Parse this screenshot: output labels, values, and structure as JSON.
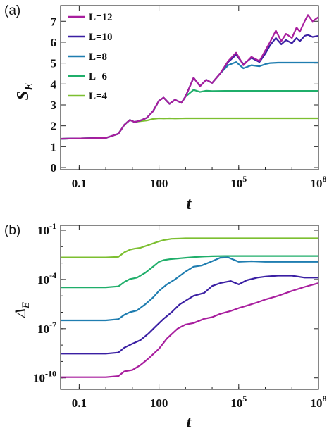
{
  "colors": {
    "L12": "#a81e9e",
    "L10": "#3a1fa3",
    "L8": "#1f7db0",
    "L6": "#1fae6a",
    "L4": "#7cbf30"
  },
  "chart_data": [
    {
      "type": "line",
      "panel_label": "(a)",
      "xscale": "log",
      "yscale": "linear",
      "xlabel": "t",
      "ylabel": "S",
      "ylabel_sub": "E",
      "xlim": [
        0.02,
        100000000
      ],
      "ylim": [
        -0.1,
        7.75
      ],
      "xticks": [
        {
          "value": 0.1,
          "label": "0.1"
        },
        {
          "value": 100,
          "label": "100"
        },
        {
          "value": 100000,
          "label": "10",
          "sup": "5"
        },
        {
          "value": 100000000,
          "label": "10",
          "sup": "8"
        }
      ],
      "yticks": [
        {
          "value": 0,
          "label": "0"
        },
        {
          "value": 1,
          "label": "1"
        },
        {
          "value": 2,
          "label": "2"
        },
        {
          "value": 3,
          "label": "3"
        },
        {
          "value": 4,
          "label": "4"
        },
        {
          "value": 5,
          "label": "5"
        },
        {
          "value": 6,
          "label": "6"
        },
        {
          "value": 7,
          "label": "7"
        }
      ],
      "legend_position": "top-left",
      "series": [
        {
          "name": "L=12",
          "color": "#a81e9e",
          "x": [
            0.02,
            1,
            3,
            5,
            8,
            12,
            20,
            35,
            60,
            100,
            150,
            250,
            400,
            700,
            1000,
            2000,
            3500,
            6000,
            10000,
            20000,
            40000,
            80000,
            150000,
            300000,
            600000,
            1000000,
            1500000,
            2500000,
            4000000,
            6000000,
            10000000,
            15000000,
            20000000,
            30000000,
            40000000,
            60000000,
            100000000
          ],
          "y": [
            1.38,
            1.42,
            1.62,
            2.05,
            2.28,
            2.18,
            2.25,
            2.38,
            2.7,
            3.2,
            3.35,
            3.05,
            3.25,
            3.1,
            3.4,
            4.3,
            3.9,
            4.2,
            4.05,
            4.5,
            5.1,
            5.5,
            4.9,
            5.3,
            5.1,
            5.6,
            6.0,
            6.55,
            6.05,
            6.4,
            6.2,
            6.7,
            6.5,
            7.0,
            7.3,
            7.0,
            7.2
          ]
        },
        {
          "name": "L=10",
          "color": "#3a1fa3",
          "x": [
            0.02,
            1,
            3,
            5,
            8,
            12,
            20,
            35,
            60,
            100,
            150,
            250,
            400,
            700,
            1000,
            2000,
            3500,
            6000,
            10000,
            20000,
            40000,
            80000,
            150000,
            300000,
            600000,
            1000000,
            1500000,
            2500000,
            4000000,
            6000000,
            10000000,
            15000000,
            20000000,
            30000000,
            40000000,
            60000000,
            100000000
          ],
          "y": [
            1.38,
            1.42,
            1.62,
            2.05,
            2.28,
            2.18,
            2.25,
            2.38,
            2.7,
            3.2,
            3.35,
            3.05,
            3.25,
            3.1,
            3.4,
            4.3,
            3.9,
            4.2,
            4.05,
            4.5,
            5.05,
            5.4,
            4.95,
            5.25,
            5.05,
            5.45,
            5.85,
            6.2,
            5.9,
            6.1,
            5.95,
            6.2,
            6.05,
            6.3,
            6.35,
            6.25,
            6.3
          ]
        },
        {
          "name": "L=8",
          "color": "#1f7db0",
          "x": [
            0.02,
            1,
            3,
            5,
            8,
            12,
            20,
            35,
            60,
            100,
            150,
            250,
            400,
            700,
            1000,
            2000,
            3500,
            6000,
            10000,
            20000,
            40000,
            80000,
            150000,
            300000,
            600000,
            1000000,
            1500000,
            3000000,
            10000000,
            100000000
          ],
          "y": [
            1.38,
            1.42,
            1.62,
            2.05,
            2.28,
            2.18,
            2.25,
            2.38,
            2.7,
            3.2,
            3.35,
            3.05,
            3.25,
            3.1,
            3.4,
            4.3,
            3.9,
            4.2,
            4.05,
            4.5,
            4.9,
            5.05,
            4.75,
            4.9,
            4.85,
            4.95,
            5.0,
            5.02,
            5.02,
            5.02
          ]
        },
        {
          "name": "L=6",
          "color": "#1fae6a",
          "x": [
            0.02,
            1,
            3,
            5,
            8,
            12,
            20,
            35,
            60,
            100,
            150,
            250,
            400,
            700,
            1000,
            2000,
            3500,
            6000,
            10000,
            30000,
            100000000
          ],
          "y": [
            1.38,
            1.42,
            1.62,
            2.05,
            2.28,
            2.18,
            2.25,
            2.38,
            2.7,
            3.2,
            3.35,
            3.05,
            3.25,
            3.1,
            3.4,
            3.72,
            3.62,
            3.68,
            3.66,
            3.67,
            3.67
          ]
        },
        {
          "name": "L=4",
          "color": "#7cbf30",
          "x": [
            0.02,
            1,
            3,
            5,
            8,
            12,
            20,
            35,
            60,
            100,
            150,
            250,
            400,
            1000,
            10000,
            100000000
          ],
          "y": [
            1.38,
            1.42,
            1.62,
            2.05,
            2.28,
            2.18,
            2.22,
            2.25,
            2.33,
            2.36,
            2.35,
            2.36,
            2.35,
            2.36,
            2.36,
            2.36
          ]
        }
      ]
    },
    {
      "type": "line",
      "panel_label": "(b)",
      "xscale": "log",
      "yscale": "log",
      "xlabel": "t",
      "ylabel": "Δ",
      "ylabel_sub": "E",
      "xlim": [
        0.02,
        100000000
      ],
      "ylim": [
        2e-11,
        0.2
      ],
      "xticks": [
        {
          "value": 0.1,
          "label": "0.1"
        },
        {
          "value": 100,
          "label": "100"
        },
        {
          "value": 100000,
          "label": "10",
          "sup": "5"
        },
        {
          "value": 100000000,
          "label": "10",
          "sup": "8"
        }
      ],
      "yticks": [
        {
          "value": 1e-10,
          "label": "10",
          "sup": "-10"
        },
        {
          "value": 1e-07,
          "label": "10",
          "sup": "-7"
        },
        {
          "value": 0.0001,
          "label": "10",
          "sup": "-4"
        },
        {
          "value": 0.1,
          "label": "10",
          "sup": "-1"
        }
      ],
      "series": [
        {
          "name": "L=4",
          "color": "#7cbf30",
          "x": [
            0.02,
            1,
            3,
            5,
            8,
            12,
            20,
            40,
            80,
            150,
            300,
            600,
            1000,
            3000,
            10000,
            100000000
          ],
          "y": [
            0.0022,
            0.0022,
            0.0024,
            0.0045,
            0.0065,
            0.0075,
            0.0085,
            0.0125,
            0.0185,
            0.025,
            0.03,
            0.031,
            0.032,
            0.032,
            0.032,
            0.032
          ]
        },
        {
          "name": "L=6",
          "color": "#1fae6a",
          "x": [
            0.02,
            1,
            3,
            5,
            8,
            15,
            30,
            60,
            100,
            150,
            250,
            500,
            1000,
            2000,
            5000,
            10000,
            30000,
            100000,
            1000000,
            100000000
          ],
          "y": [
            3.3e-05,
            3.3e-05,
            3.8e-05,
            7e-05,
            0.000105,
            0.00013,
            0.00025,
            0.0006,
            0.0012,
            0.0015,
            0.0017,
            0.0019,
            0.0021,
            0.0023,
            0.0025,
            0.0026,
            0.0027,
            0.0027,
            0.0027,
            0.0027
          ]
        },
        {
          "name": "L=8",
          "color": "#1f7db0",
          "x": [
            0.02,
            1,
            3,
            5,
            8,
            15,
            30,
            60,
            100,
            200,
            400,
            1000,
            2000,
            4000,
            10000,
            20000,
            40000,
            100000,
            300000,
            1000000,
            10000000,
            100000000
          ],
          "y": [
            3.2e-07,
            3.2e-07,
            3.8e-07,
            7e-07,
            1e-06,
            1.3e-06,
            3e-06,
            8e-06,
            2e-05,
            5e-05,
            0.0001,
            0.0003,
            0.0006,
            0.0007,
            0.0013,
            0.0021,
            0.0022,
            0.0012,
            0.0013,
            0.0012,
            0.0012,
            0.0012
          ]
        },
        {
          "name": "L=10",
          "color": "#3a1fa3",
          "x": [
            0.02,
            1,
            3,
            5,
            10,
            20,
            40,
            80,
            150,
            300,
            600,
            1000,
            2000,
            5000,
            10000,
            20000,
            50000,
            100000,
            200000,
            500000,
            1000000,
            3000000,
            10000000,
            30000000,
            100000000
          ],
          "y": [
            3e-09,
            3e-09,
            3.5e-09,
            7e-09,
            1.2e-08,
            2e-08,
            5e-08,
            1.5e-07,
            4e-07,
            1e-06,
            3e-06,
            5e-06,
            1e-05,
            1.5e-05,
            4e-05,
            6e-05,
            8e-05,
            5e-05,
            9e-05,
            0.00013,
            0.00015,
            0.00017,
            0.00017,
            0.00013,
            0.00013
          ]
        },
        {
          "name": "L=12",
          "color": "#a81e9e",
          "x": [
            0.02,
            1,
            3,
            5,
            10,
            20,
            40,
            100,
            200,
            500,
            1000,
            2000,
            5000,
            10000,
            20000,
            50000,
            100000,
            200000,
            500000,
            1000000,
            3000000,
            10000000,
            30000000,
            100000000
          ],
          "y": [
            1.1e-10,
            1.1e-10,
            1.3e-10,
            2.5e-10,
            3e-10,
            6e-10,
            1.5e-09,
            6e-09,
            2.5e-08,
            1e-07,
            1.8e-07,
            2.2e-07,
            4e-07,
            5e-07,
            8e-07,
            1.2e-06,
            1.8e-06,
            2.5e-06,
            4e-06,
            6e-06,
            1e-05,
            2e-05,
            3.5e-05,
            6e-05
          ]
        }
      ]
    }
  ]
}
